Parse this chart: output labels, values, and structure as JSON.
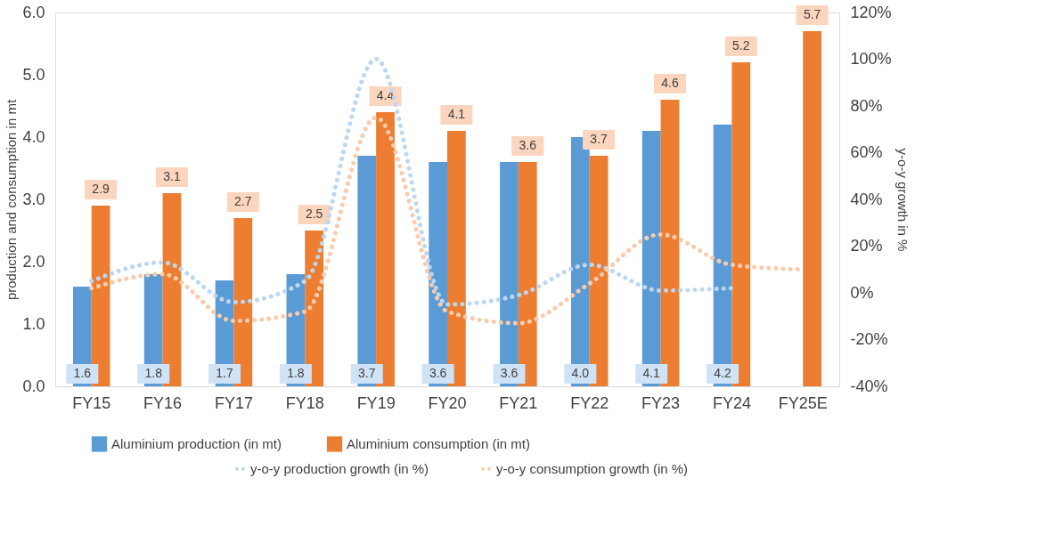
{
  "chart_data": {
    "type": "bar",
    "categories": [
      "FY15",
      "FY16",
      "FY17",
      "FY18",
      "FY19",
      "FY20",
      "FY21",
      "FY22",
      "FY23",
      "FY24",
      "FY25E"
    ],
    "ylabel": "production and consumption in mt",
    "y2label": "y-o-y growth in %",
    "ylim": [
      0,
      6
    ],
    "yticks": [
      {
        "value": 0,
        "label": "0.0"
      },
      {
        "value": 1,
        "label": "1.0"
      },
      {
        "value": 2,
        "label": "2.0"
      },
      {
        "value": 3,
        "label": "3.0"
      },
      {
        "value": 4,
        "label": "4.0"
      },
      {
        "value": 5,
        "label": "5.0"
      },
      {
        "value": 6,
        "label": "6.0"
      }
    ],
    "y2lim": [
      -40,
      120
    ],
    "y2ticks": [
      {
        "value": -40,
        "label": "-40%"
      },
      {
        "value": -20,
        "label": "-20%"
      },
      {
        "value": 0,
        "label": "0%"
      },
      {
        "value": 20,
        "label": "20%"
      },
      {
        "value": 40,
        "label": "40%"
      },
      {
        "value": 60,
        "label": "60%"
      },
      {
        "value": 80,
        "label": "80%"
      },
      {
        "value": 100,
        "label": "100%"
      },
      {
        "value": 120,
        "label": "120%"
      }
    ],
    "series": [
      {
        "name": "Aluminium production (in mt)",
        "color": "#5b9bd5",
        "values": [
          1.6,
          1.8,
          1.7,
          1.8,
          3.7,
          3.6,
          3.6,
          4.0,
          4.1,
          4.2,
          null
        ],
        "value_labels": [
          "1.6",
          "1.8",
          "1.7",
          "1.8",
          "3.7",
          "3.6",
          "3.6",
          "4.0",
          "4.1",
          "4.2",
          null
        ]
      },
      {
        "name": "Aluminium consumption (in mt)",
        "color": "#ed7d31",
        "values": [
          2.9,
          3.1,
          2.7,
          2.5,
          4.4,
          4.1,
          3.6,
          3.7,
          4.6,
          5.2,
          5.7
        ],
        "value_labels": [
          "2.9",
          "3.1",
          "2.7",
          "2.5",
          "4.4",
          "4.1",
          "3.6",
          "3.7",
          "4.6",
          "5.2",
          "5.7"
        ]
      },
      {
        "name": "y-o-y production growth (in %)",
        "type": "line",
        "axis": "y2",
        "color": "#bdd7ee",
        "line_style": "dotted",
        "values": [
          5,
          13,
          -4,
          5,
          100,
          -5,
          -1,
          12,
          1,
          2,
          null
        ]
      },
      {
        "name": "y-o-y consumption growth (in %)",
        "type": "line",
        "axis": "y2",
        "color": "#f8cbad",
        "line_style": "dotted",
        "values": [
          2,
          8,
          -12,
          -8,
          75,
          -8,
          -13,
          4,
          25,
          12,
          10
        ]
      }
    ],
    "grid": false,
    "legend": "bottom"
  }
}
